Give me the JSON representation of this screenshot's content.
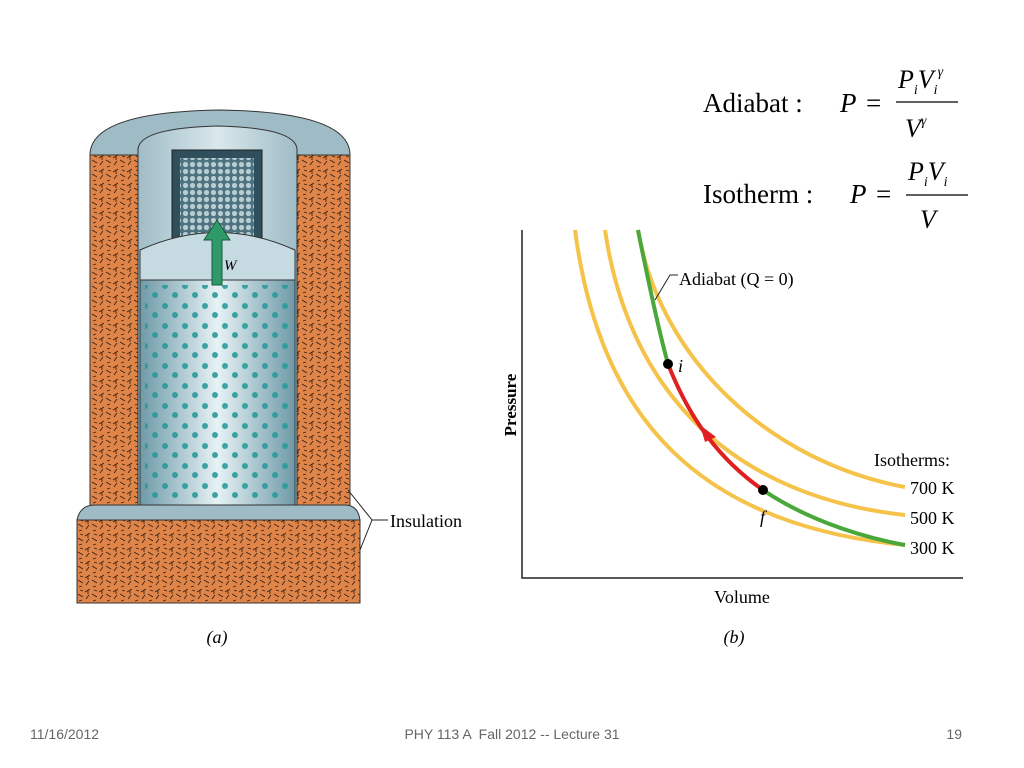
{
  "equations": [
    {
      "label": "Adiabat :",
      "lhs": "P",
      "eq": "=",
      "num": [
        "P",
        "i",
        "V",
        "i",
        "γ"
      ],
      "den": [
        "V",
        "γ"
      ]
    },
    {
      "label": "Isotherm :",
      "lhs": "P",
      "eq": "=",
      "num": [
        "P",
        "i",
        "V",
        "i"
      ],
      "den": [
        "V"
      ]
    }
  ],
  "figure_a": {
    "work_label": "W",
    "insulation_label": "Insulation",
    "caption": "(a)"
  },
  "figure_b": {
    "y_label": "Pressure",
    "x_label": "Volume",
    "adiabat_label": "Adiabat (Q = 0)",
    "initial_label": "i",
    "final_label": "f",
    "isotherms_title": "Isotherms:",
    "isotherms": [
      "700 K",
      "500 K",
      "300 K"
    ],
    "caption": "(b)"
  },
  "footer": {
    "date": "11/16/2012",
    "course": "PHY 113 A  Fall 2012 -- Lecture 31",
    "page": "19"
  }
}
